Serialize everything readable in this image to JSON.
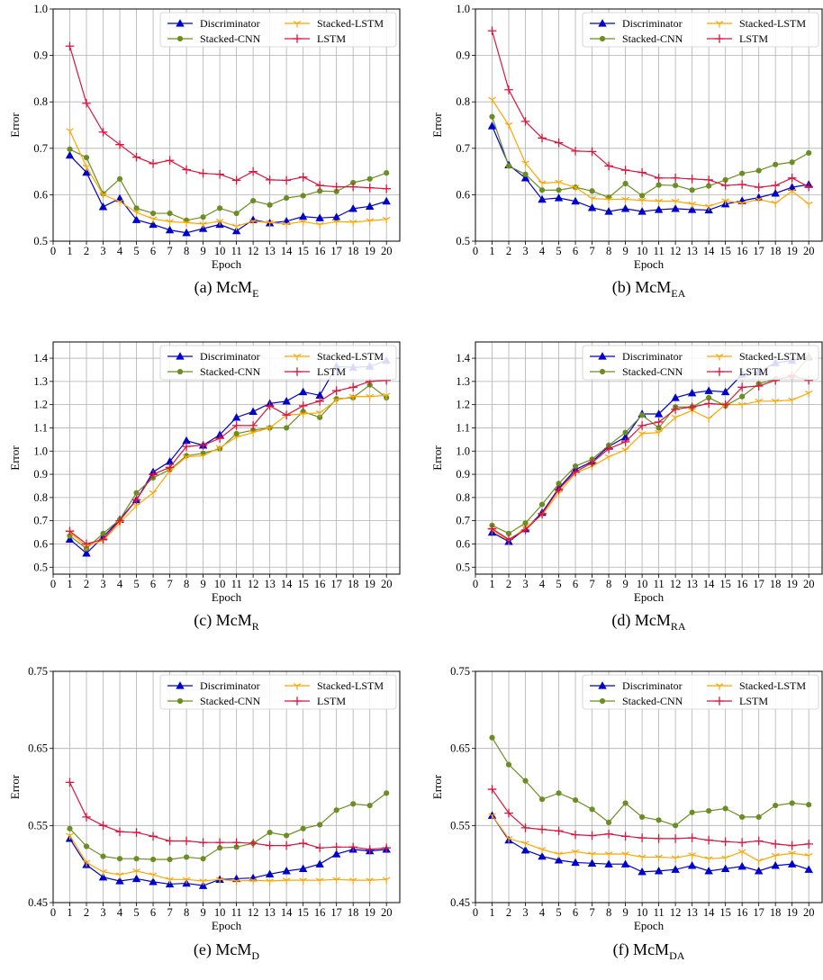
{
  "chart_data": [
    {
      "type": "line",
      "caption": "(a) McM",
      "caption_sub": "E",
      "xlabel": "Epoch",
      "ylabel": "Error",
      "ylim": [
        0.5,
        1.0
      ],
      "yticks": [
        "0.5",
        "0.6",
        "0.7",
        "0.8",
        "0.9",
        "1.0"
      ],
      "x": [
        1,
        2,
        3,
        4,
        5,
        6,
        7,
        8,
        9,
        10,
        11,
        12,
        13,
        14,
        15,
        16,
        17,
        18,
        19,
        20
      ],
      "series": [
        {
          "name": "Discriminator",
          "color": "#0000cc",
          "marker": "triangle",
          "values": [
            0.685,
            0.648,
            0.574,
            0.592,
            0.546,
            0.536,
            0.524,
            0.518,
            0.527,
            0.536,
            0.522,
            0.546,
            0.539,
            0.543,
            0.553,
            0.55,
            0.552,
            0.57,
            0.575,
            0.586
          ]
        },
        {
          "name": "Stacked-CNN",
          "color": "#6b8e23",
          "marker": "circle",
          "values": [
            0.698,
            0.68,
            0.602,
            0.634,
            0.571,
            0.56,
            0.56,
            0.545,
            0.552,
            0.571,
            0.56,
            0.587,
            0.578,
            0.593,
            0.598,
            0.608,
            0.607,
            0.626,
            0.634,
            0.647
          ]
        },
        {
          "name": "Stacked-LSTM",
          "color": "#ffa500",
          "marker": "tri_down",
          "values": [
            0.738,
            0.66,
            0.6,
            0.585,
            0.562,
            0.548,
            0.542,
            0.54,
            0.537,
            0.543,
            0.532,
            0.543,
            0.54,
            0.537,
            0.542,
            0.536,
            0.542,
            0.541,
            0.544,
            0.547
          ]
        },
        {
          "name": "LSTM",
          "color": "#dc143c",
          "marker": "plus",
          "values": [
            0.92,
            0.797,
            0.735,
            0.708,
            0.681,
            0.667,
            0.674,
            0.654,
            0.646,
            0.644,
            0.631,
            0.65,
            0.632,
            0.631,
            0.638,
            0.62,
            0.617,
            0.617,
            0.615,
            0.613
          ]
        }
      ]
    },
    {
      "type": "line",
      "caption": "(b) McM",
      "caption_sub": "EA",
      "xlabel": "Epoch",
      "ylabel": "Error",
      "ylim": [
        0.5,
        1.0
      ],
      "yticks": [
        "0.5",
        "0.6",
        "0.7",
        "0.8",
        "0.9",
        "1.0"
      ],
      "x": [
        1,
        2,
        3,
        4,
        5,
        6,
        7,
        8,
        9,
        10,
        11,
        12,
        13,
        14,
        15,
        16,
        17,
        18,
        19,
        20
      ],
      "series": [
        {
          "name": "Discriminator",
          "color": "#0000cc",
          "marker": "triangle",
          "values": [
            0.748,
            0.664,
            0.636,
            0.59,
            0.593,
            0.586,
            0.572,
            0.564,
            0.57,
            0.564,
            0.568,
            0.57,
            0.568,
            0.567,
            0.58,
            0.587,
            0.594,
            0.603,
            0.616,
            0.622
          ]
        },
        {
          "name": "Stacked-CNN",
          "color": "#6b8e23",
          "marker": "circle",
          "values": [
            0.768,
            0.662,
            0.644,
            0.61,
            0.61,
            0.616,
            0.608,
            0.594,
            0.624,
            0.598,
            0.621,
            0.62,
            0.61,
            0.619,
            0.632,
            0.646,
            0.652,
            0.665,
            0.67,
            0.69
          ]
        },
        {
          "name": "Stacked-LSTM",
          "color": "#ffa500",
          "marker": "tri_down",
          "values": [
            0.805,
            0.75,
            0.668,
            0.625,
            0.627,
            0.616,
            0.592,
            0.59,
            0.59,
            0.588,
            0.586,
            0.586,
            0.58,
            0.575,
            0.587,
            0.582,
            0.59,
            0.582,
            0.608,
            0.58
          ]
        },
        {
          "name": "LSTM",
          "color": "#dc143c",
          "marker": "plus",
          "values": [
            0.953,
            0.826,
            0.758,
            0.722,
            0.712,
            0.694,
            0.693,
            0.662,
            0.653,
            0.648,
            0.636,
            0.636,
            0.634,
            0.632,
            0.62,
            0.622,
            0.616,
            0.62,
            0.636,
            0.617
          ]
        }
      ]
    },
    {
      "type": "line",
      "caption": "(c) McM",
      "caption_sub": "R",
      "xlabel": "Epoch",
      "ylabel": "Error",
      "ylim": [
        0.47,
        1.47
      ],
      "yticks": [
        "0.5",
        "0.6",
        "0.7",
        "0.8",
        "0.9",
        "1.0",
        "1.1",
        "1.2",
        "1.3",
        "1.4"
      ],
      "x": [
        1,
        2,
        3,
        4,
        5,
        6,
        7,
        8,
        9,
        10,
        11,
        12,
        13,
        14,
        15,
        16,
        17,
        18,
        19,
        20
      ],
      "series": [
        {
          "name": "Discriminator",
          "color": "#0000cc",
          "marker": "triangle",
          "values": [
            0.62,
            0.56,
            0.63,
            0.705,
            0.79,
            0.91,
            0.955,
            1.045,
            1.025,
            1.07,
            1.145,
            1.17,
            1.205,
            1.215,
            1.255,
            1.24,
            1.365,
            1.36,
            1.365,
            1.39
          ]
        },
        {
          "name": "Stacked-CNN",
          "color": "#6b8e23",
          "marker": "circle",
          "values": [
            0.635,
            0.58,
            0.645,
            0.705,
            0.82,
            0.885,
            0.92,
            0.98,
            0.99,
            1.01,
            1.075,
            1.09,
            1.1,
            1.1,
            1.17,
            1.145,
            1.225,
            1.23,
            1.285,
            1.23
          ]
        },
        {
          "name": "Stacked-LSTM",
          "color": "#ffa500",
          "marker": "tri_down",
          "values": [
            0.65,
            0.59,
            0.615,
            0.69,
            0.765,
            0.82,
            0.915,
            0.975,
            0.98,
            1.015,
            1.06,
            1.08,
            1.1,
            1.155,
            1.16,
            1.165,
            1.22,
            1.235,
            1.235,
            1.24
          ]
        },
        {
          "name": "LSTM",
          "color": "#dc143c",
          "marker": "plus",
          "values": [
            0.655,
            0.6,
            0.62,
            0.7,
            0.79,
            0.9,
            0.93,
            1.02,
            1.025,
            1.055,
            1.11,
            1.11,
            1.195,
            1.155,
            1.195,
            1.215,
            1.26,
            1.275,
            1.3,
            1.305
          ]
        }
      ]
    },
    {
      "type": "line",
      "caption": "(d) McM",
      "caption_sub": "RA",
      "xlabel": "Epoch",
      "ylabel": "Error",
      "ylim": [
        0.47,
        1.47
      ],
      "yticks": [
        "0.5",
        "0.6",
        "0.7",
        "0.8",
        "0.9",
        "1.0",
        "1.1",
        "1.2",
        "1.3",
        "1.4"
      ],
      "x": [
        1,
        2,
        3,
        4,
        5,
        6,
        7,
        8,
        9,
        10,
        11,
        12,
        13,
        14,
        15,
        16,
        17,
        18,
        19,
        20
      ],
      "series": [
        {
          "name": "Discriminator",
          "color": "#0000cc",
          "marker": "triangle",
          "values": [
            0.65,
            0.61,
            0.665,
            0.735,
            0.84,
            0.92,
            0.955,
            1.02,
            1.06,
            1.16,
            1.16,
            1.23,
            1.25,
            1.26,
            1.255,
            1.33,
            1.34,
            1.38,
            1.39,
            1.405
          ]
        },
        {
          "name": "Stacked-CNN",
          "color": "#6b8e23",
          "marker": "circle",
          "values": [
            0.68,
            0.645,
            0.69,
            0.77,
            0.86,
            0.935,
            0.965,
            1.025,
            1.08,
            1.155,
            1.1,
            1.19,
            1.19,
            1.23,
            1.195,
            1.235,
            1.29,
            1.31,
            1.32,
            1.405
          ]
        },
        {
          "name": "Stacked-LSTM",
          "color": "#ffa500",
          "marker": "tri_down",
          "values": [
            0.66,
            0.615,
            0.67,
            0.725,
            0.82,
            0.905,
            0.935,
            0.975,
            1.005,
            1.075,
            1.08,
            1.145,
            1.175,
            1.14,
            1.2,
            1.2,
            1.215,
            1.215,
            1.22,
            1.25
          ]
        },
        {
          "name": "LSTM",
          "color": "#dc143c",
          "marker": "plus",
          "values": [
            0.665,
            0.62,
            0.66,
            0.73,
            0.835,
            0.91,
            0.95,
            1.01,
            1.04,
            1.11,
            1.125,
            1.18,
            1.19,
            1.205,
            1.2,
            1.275,
            1.28,
            1.305,
            1.325,
            1.305
          ]
        }
      ]
    },
    {
      "type": "line",
      "caption": "(e) McM",
      "caption_sub": "D",
      "xlabel": "Epoch",
      "ylabel": "Error",
      "ylim": [
        0.45,
        0.75
      ],
      "yticks": [
        "0.45",
        "0.55",
        "0.65",
        "0.75"
      ],
      "x": [
        1,
        2,
        3,
        4,
        5,
        6,
        7,
        8,
        9,
        10,
        11,
        12,
        13,
        14,
        15,
        16,
        17,
        18,
        19,
        20
      ],
      "series": [
        {
          "name": "Discriminator",
          "color": "#0000cc",
          "marker": "triangle",
          "values": [
            0.533,
            0.499,
            0.483,
            0.478,
            0.481,
            0.477,
            0.474,
            0.475,
            0.472,
            0.48,
            0.481,
            0.482,
            0.487,
            0.491,
            0.494,
            0.5,
            0.513,
            0.519,
            0.517,
            0.519
          ]
        },
        {
          "name": "Stacked-CNN",
          "color": "#6b8e23",
          "marker": "circle",
          "values": [
            0.546,
            0.523,
            0.51,
            0.507,
            0.507,
            0.506,
            0.506,
            0.509,
            0.507,
            0.521,
            0.522,
            0.527,
            0.541,
            0.537,
            0.546,
            0.551,
            0.57,
            0.578,
            0.576,
            0.592
          ]
        },
        {
          "name": "Stacked-LSTM",
          "color": "#ffa500",
          "marker": "tri_down",
          "values": [
            0.537,
            0.502,
            0.49,
            0.486,
            0.491,
            0.486,
            0.48,
            0.48,
            0.478,
            0.48,
            0.478,
            0.479,
            0.478,
            0.479,
            0.479,
            0.479,
            0.48,
            0.479,
            0.479,
            0.48
          ]
        },
        {
          "name": "LSTM",
          "color": "#dc143c",
          "marker": "plus",
          "values": [
            0.606,
            0.561,
            0.55,
            0.542,
            0.541,
            0.536,
            0.53,
            0.53,
            0.528,
            0.528,
            0.528,
            0.527,
            0.524,
            0.524,
            0.527,
            0.521,
            0.522,
            0.522,
            0.519,
            0.521
          ]
        }
      ]
    },
    {
      "type": "line",
      "caption": "(f) McM",
      "caption_sub": "DA",
      "xlabel": "Epoch",
      "ylabel": "Error",
      "ylim": [
        0.45,
        0.75
      ],
      "yticks": [
        "0.45",
        "0.55",
        "0.65",
        "0.75"
      ],
      "x": [
        1,
        2,
        3,
        4,
        5,
        6,
        7,
        8,
        9,
        10,
        11,
        12,
        13,
        14,
        15,
        16,
        17,
        18,
        19,
        20
      ],
      "series": [
        {
          "name": "Discriminator",
          "color": "#0000cc",
          "marker": "triangle",
          "values": [
            0.563,
            0.531,
            0.518,
            0.51,
            0.505,
            0.502,
            0.501,
            0.5,
            0.5,
            0.49,
            0.491,
            0.493,
            0.498,
            0.491,
            0.494,
            0.497,
            0.491,
            0.498,
            0.5,
            0.493
          ]
        },
        {
          "name": "Stacked-CNN",
          "color": "#6b8e23",
          "marker": "circle",
          "values": [
            0.664,
            0.629,
            0.608,
            0.584,
            0.592,
            0.583,
            0.571,
            0.554,
            0.579,
            0.561,
            0.557,
            0.55,
            0.567,
            0.569,
            0.572,
            0.561,
            0.561,
            0.576,
            0.579,
            0.577
          ]
        },
        {
          "name": "Stacked-LSTM",
          "color": "#ffa500",
          "marker": "tri_down",
          "values": [
            0.563,
            0.533,
            0.527,
            0.519,
            0.513,
            0.516,
            0.513,
            0.513,
            0.513,
            0.509,
            0.509,
            0.508,
            0.512,
            0.507,
            0.508,
            0.516,
            0.504,
            0.511,
            0.514,
            0.511
          ]
        },
        {
          "name": "LSTM",
          "color": "#dc143c",
          "marker": "plus",
          "values": [
            0.597,
            0.566,
            0.547,
            0.545,
            0.543,
            0.538,
            0.537,
            0.539,
            0.536,
            0.534,
            0.533,
            0.533,
            0.534,
            0.531,
            0.529,
            0.528,
            0.53,
            0.526,
            0.524,
            0.526
          ]
        }
      ]
    }
  ]
}
